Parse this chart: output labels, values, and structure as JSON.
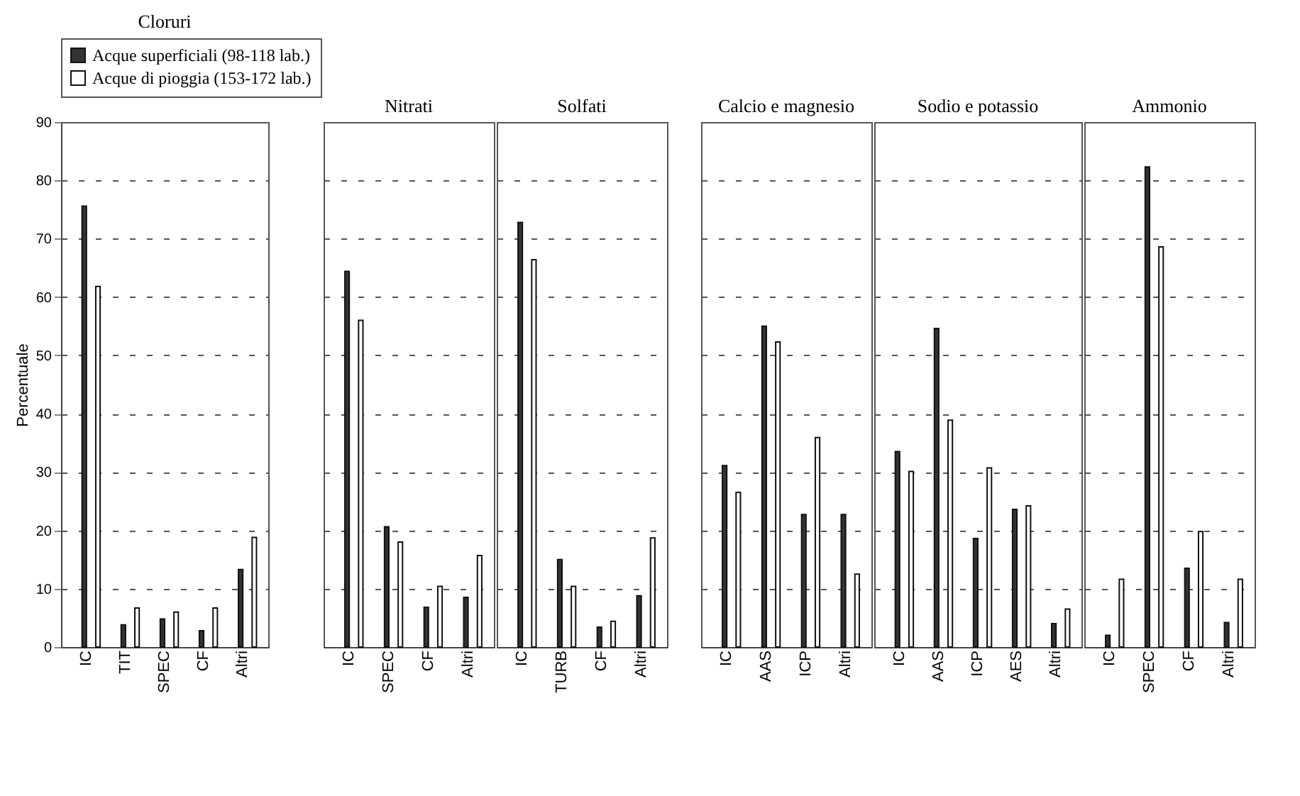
{
  "chart_data": [
    {
      "type": "bar",
      "title": "Cloruri",
      "ylabel": "Percentuale",
      "categories": [
        "IC",
        "TIT",
        "SPEC",
        "CF",
        "Altri"
      ],
      "ylim": [
        0,
        90
      ],
      "yticks": [
        0,
        10,
        20,
        30,
        40,
        50,
        60,
        70,
        80,
        90
      ],
      "grid": "y",
      "legend": "top",
      "series": [
        {
          "name": "Acque superficiali (98-118 lab.)",
          "color": "#333333",
          "values": [
            75.6,
            3.8,
            4.8,
            2.8,
            13.3
          ]
        },
        {
          "name": "Acque di pioggia (153-172 lab.)",
          "color": "#ffffff",
          "values": [
            61.8,
            6.7,
            6.0,
            6.7,
            18.8
          ]
        }
      ]
    },
    {
      "type": "bar",
      "title": "Nitrati",
      "categories": [
        "IC",
        "SPEC",
        "CF",
        "Altri"
      ],
      "ylim": [
        0,
        90
      ],
      "yticks": [
        0,
        10,
        20,
        30,
        40,
        50,
        60,
        70,
        80,
        90
      ],
      "grid": "y",
      "tick_labels": "x",
      "series": [
        {
          "color": "#333333",
          "values": [
            64.4,
            20.6,
            6.8,
            8.5
          ]
        },
        {
          "color": "#ffffff",
          "values": [
            56.0,
            18.0,
            10.4,
            15.7
          ]
        }
      ]
    },
    {
      "type": "bar",
      "title": "Solfati",
      "categories": [
        "IC",
        "TURB",
        "CF",
        "Altri"
      ],
      "ylim": [
        0,
        90
      ],
      "yticks": [
        0,
        10,
        20,
        30,
        40,
        50,
        60,
        70,
        80,
        90
      ],
      "grid": "y",
      "tick_labels": "x",
      "series": [
        {
          "color": "#333333",
          "values": [
            72.8,
            15.0,
            3.4,
            8.8
          ]
        },
        {
          "color": "#ffffff",
          "values": [
            66.4,
            10.4,
            4.4,
            18.7
          ]
        }
      ]
    },
    {
      "type": "bar",
      "title": "Calcio e magnesio",
      "categories": [
        "IC",
        "AAS",
        "ICP",
        "Altri"
      ],
      "ylim": [
        0,
        90
      ],
      "yticks": [
        0,
        10,
        20,
        30,
        40,
        50,
        60,
        70,
        80,
        90
      ],
      "grid": "y",
      "tick_labels": "x",
      "series": [
        {
          "color": "#333333",
          "values": [
            31.1,
            55.0,
            22.7,
            22.7
          ]
        },
        {
          "color": "#ffffff",
          "values": [
            26.5,
            52.3,
            35.9,
            12.5
          ]
        }
      ]
    },
    {
      "type": "bar",
      "title": "Sodio e potassio",
      "categories": [
        "IC",
        "AAS",
        "ICP",
        "AES",
        "Altri"
      ],
      "ylim": [
        0,
        90
      ],
      "yticks": [
        0,
        10,
        20,
        30,
        40,
        50,
        60,
        70,
        80,
        90
      ],
      "grid": "y",
      "tick_labels": "x",
      "series": [
        {
          "color": "#333333",
          "values": [
            33.5,
            54.6,
            18.6,
            23.6,
            4.0
          ]
        },
        {
          "color": "#ffffff",
          "values": [
            30.1,
            38.9,
            30.7,
            24.2,
            6.5
          ]
        }
      ]
    },
    {
      "type": "bar",
      "title": "Ammonio",
      "categories": [
        "IC",
        "SPEC",
        "CF",
        "Altri"
      ],
      "ylim": [
        0,
        90
      ],
      "yticks": [
        0,
        10,
        20,
        30,
        40,
        50,
        60,
        70,
        80,
        90
      ],
      "grid": "y",
      "tick_labels": "x",
      "series": [
        {
          "color": "#333333",
          "values": [
            2.0,
            82.3,
            13.5,
            4.2
          ]
        },
        {
          "color": "#ffffff",
          "values": [
            11.6,
            68.6,
            19.8,
            11.6
          ]
        }
      ]
    }
  ]
}
